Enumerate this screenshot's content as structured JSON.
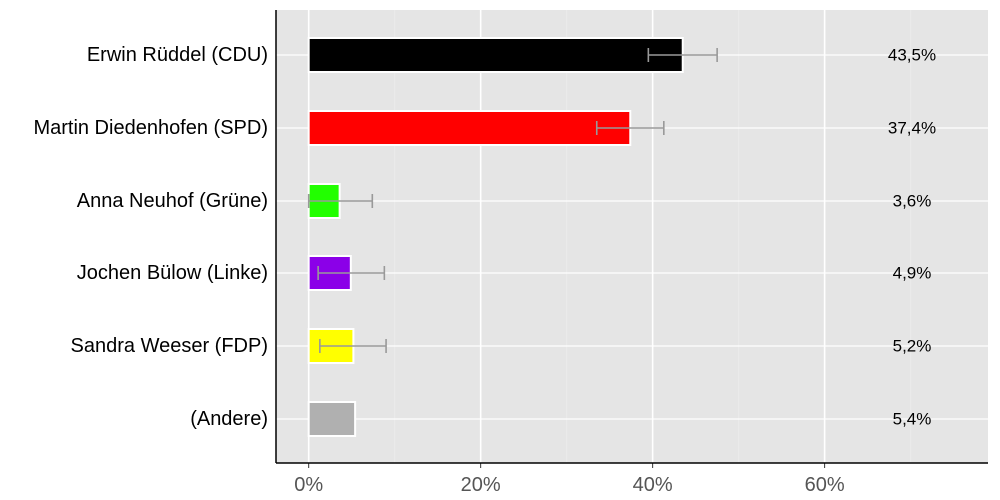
{
  "chart_data": {
    "type": "bar",
    "orientation": "horizontal",
    "categories": [
      "Erwin Rüddel (CDU)",
      "Martin Diedenhofen (SPD)",
      "Anna Neuhof (Grüne)",
      "Jochen Bülow (Linke)",
      "Sandra Weeser (FDP)",
      "(Andere)"
    ],
    "values": [
      43.5,
      37.4,
      3.6,
      4.9,
      5.2,
      5.4
    ],
    "value_labels": [
      "43,5%",
      "37,4%",
      "3,6%",
      "4,9%",
      "5,2%",
      "5,4%"
    ],
    "error_bars": [
      [
        39.5,
        47.5
      ],
      [
        33.5,
        41.3
      ],
      [
        0,
        7.4
      ],
      [
        1.1,
        8.8
      ],
      [
        1.3,
        9.0
      ],
      null
    ],
    "colors": [
      "#000000",
      "#ff0000",
      "#22ff00",
      "#8b00e8",
      "#ffff00",
      "#b0b0b0"
    ],
    "error_bar_color": "#999999",
    "xlim": [
      -3.8,
      79
    ],
    "xticks": [
      0,
      20,
      40,
      60
    ],
    "xtick_labels": [
      "0%",
      "20%",
      "40%",
      "60%"
    ],
    "grid": true,
    "background": "#e5e5e5",
    "title": "",
    "xlabel": "",
    "ylabel": ""
  }
}
